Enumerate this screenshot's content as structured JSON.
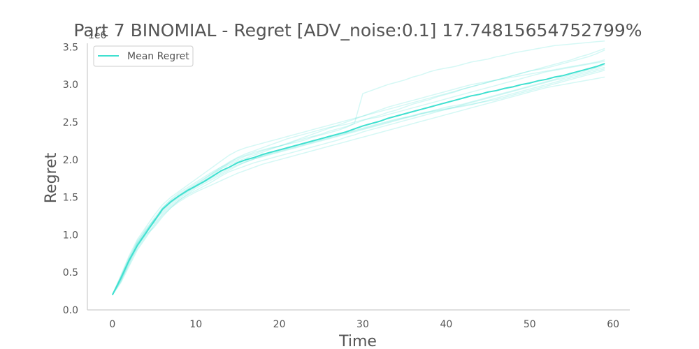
{
  "chart_data": {
    "type": "line",
    "title": "Part 7 BINOMIAL - Regret [ADV_noise:0.1] 17.74815654752799%",
    "xlabel": "Time",
    "ylabel": "Regret",
    "y_offset_label": "1e6",
    "xlim": [
      -3,
      62
    ],
    "ylim": [
      0,
      3.55
    ],
    "x_ticks": [
      0,
      10,
      20,
      30,
      40,
      50,
      60
    ],
    "x_tick_labels": [
      "0",
      "10",
      "20",
      "30",
      "40",
      "50",
      "60"
    ],
    "y_ticks": [
      0,
      0.5,
      1.0,
      1.5,
      2.0,
      2.5,
      3.0,
      3.5
    ],
    "y_tick_labels": [
      "0.0",
      "0.5",
      "1.0",
      "1.5",
      "2.0",
      "2.5",
      "3.0",
      "3.5"
    ],
    "grid": false,
    "legend": {
      "position": "upper-left",
      "entries": [
        "Mean Regret"
      ]
    },
    "color": "#40e0d0",
    "x": [
      0,
      1,
      2,
      3,
      4,
      5,
      6,
      7,
      8,
      9,
      10,
      11,
      12,
      13,
      14,
      15,
      16,
      17,
      18,
      19,
      20,
      21,
      22,
      23,
      24,
      25,
      26,
      27,
      28,
      29,
      30,
      31,
      32,
      33,
      34,
      35,
      36,
      37,
      38,
      39,
      40,
      41,
      42,
      43,
      44,
      45,
      46,
      47,
      48,
      49,
      50,
      51,
      52,
      53,
      54,
      55,
      56,
      57,
      58,
      59
    ],
    "series": [
      {
        "name": "Mean Regret",
        "values": [
          0.2,
          0.42,
          0.66,
          0.86,
          1.02,
          1.18,
          1.34,
          1.44,
          1.52,
          1.59,
          1.65,
          1.71,
          1.78,
          1.85,
          1.9,
          1.96,
          2.0,
          2.03,
          2.07,
          2.1,
          2.13,
          2.16,
          2.19,
          2.22,
          2.25,
          2.28,
          2.31,
          2.34,
          2.37,
          2.41,
          2.45,
          2.48,
          2.51,
          2.55,
          2.58,
          2.61,
          2.64,
          2.67,
          2.7,
          2.73,
          2.76,
          2.79,
          2.82,
          2.85,
          2.87,
          2.9,
          2.92,
          2.95,
          2.97,
          3.0,
          3.02,
          3.05,
          3.07,
          3.1,
          3.12,
          3.15,
          3.18,
          3.21,
          3.24,
          3.28
        ],
        "linewidth": 2
      }
    ],
    "runs": [
      [
        0.2,
        0.38,
        0.62,
        0.88,
        1.05,
        1.22,
        1.36,
        1.47,
        1.56,
        1.63,
        1.7,
        1.77,
        1.84,
        1.9,
        1.95,
        2.0,
        2.05,
        2.08,
        2.12,
        2.15,
        2.18,
        2.21,
        2.25,
        2.28,
        2.31,
        2.34,
        2.38,
        2.41,
        2.44,
        2.48,
        2.52,
        2.56,
        2.59,
        2.63,
        2.66,
        2.7,
        2.74,
        2.77,
        2.8,
        2.84,
        2.87,
        2.9,
        2.94,
        2.97,
        3.0,
        3.03,
        3.06,
        3.09,
        3.12,
        3.15,
        3.18,
        3.21,
        3.24,
        3.27,
        3.3,
        3.33,
        3.37,
        3.4,
        3.44,
        3.48
      ],
      [
        0.2,
        0.44,
        0.7,
        0.9,
        1.08,
        1.2,
        1.3,
        1.4,
        1.48,
        1.56,
        1.64,
        1.72,
        1.8,
        1.88,
        1.96,
        2.02,
        2.06,
        2.1,
        2.13,
        2.16,
        2.18,
        2.21,
        2.23,
        2.26,
        2.3,
        2.33,
        2.36,
        2.39,
        2.43,
        2.48,
        2.88,
        2.92,
        2.96,
        3.0,
        3.03,
        3.06,
        3.1,
        3.13,
        3.17,
        3.2,
        3.22,
        3.24,
        3.27,
        3.3,
        3.32,
        3.34,
        3.37,
        3.39,
        3.42,
        3.44,
        3.46,
        3.48,
        3.5,
        3.52,
        3.53,
        3.54,
        3.55,
        3.56,
        3.57,
        3.58
      ],
      [
        0.2,
        0.4,
        0.64,
        0.82,
        0.98,
        1.14,
        1.28,
        1.38,
        1.46,
        1.53,
        1.59,
        1.65,
        1.71,
        1.78,
        1.84,
        1.88,
        1.92,
        1.96,
        1.99,
        2.02,
        2.05,
        2.08,
        2.11,
        2.14,
        2.17,
        2.2,
        2.23,
        2.26,
        2.3,
        2.33,
        2.37,
        2.4,
        2.43,
        2.46,
        2.49,
        2.52,
        2.55,
        2.58,
        2.61,
        2.64,
        2.67,
        2.7,
        2.73,
        2.76,
        2.79,
        2.82,
        2.85,
        2.88,
        2.91,
        2.94,
        2.97,
        3.0,
        3.03,
        3.06,
        3.08,
        3.11,
        3.14,
        3.17,
        3.2,
        3.23
      ],
      [
        0.2,
        0.46,
        0.72,
        0.94,
        1.1,
        1.26,
        1.4,
        1.5,
        1.58,
        1.66,
        1.74,
        1.82,
        1.9,
        1.98,
        2.06,
        2.12,
        2.16,
        2.19,
        2.22,
        2.25,
        2.28,
        2.31,
        2.34,
        2.37,
        2.4,
        2.43,
        2.46,
        2.49,
        2.52,
        2.55,
        2.58,
        2.61,
        2.64,
        2.67,
        2.7,
        2.73,
        2.76,
        2.79,
        2.82,
        2.85,
        2.88,
        2.91,
        2.94,
        2.97,
        3.0,
        3.03,
        3.06,
        3.09,
        3.12,
        3.15,
        3.18,
        3.2,
        3.22,
        3.25,
        3.28,
        3.31,
        3.34,
        3.37,
        3.41,
        3.46
      ],
      [
        0.2,
        0.36,
        0.58,
        0.8,
        0.96,
        1.12,
        1.26,
        1.36,
        1.44,
        1.51,
        1.57,
        1.62,
        1.67,
        1.72,
        1.77,
        1.82,
        1.86,
        1.9,
        1.94,
        1.97,
        2.0,
        2.03,
        2.06,
        2.09,
        2.12,
        2.15,
        2.18,
        2.21,
        2.24,
        2.27,
        2.3,
        2.33,
        2.36,
        2.39,
        2.42,
        2.45,
        2.48,
        2.51,
        2.54,
        2.57,
        2.6,
        2.63,
        2.66,
        2.69,
        2.72,
        2.75,
        2.78,
        2.81,
        2.84,
        2.87,
        2.9,
        2.93,
        2.96,
        2.98,
        3.0,
        3.02,
        3.04,
        3.06,
        3.08,
        3.1
      ],
      [
        0.2,
        0.42,
        0.68,
        0.92,
        1.06,
        1.16,
        1.32,
        1.42,
        1.5,
        1.58,
        1.66,
        1.74,
        1.82,
        1.9,
        1.97,
        2.03,
        2.08,
        2.12,
        2.16,
        2.2,
        2.24,
        2.28,
        2.31,
        2.34,
        2.37,
        2.4,
        2.43,
        2.45,
        2.47,
        2.5,
        2.53,
        2.55,
        2.57,
        2.6,
        2.63,
        2.66,
        2.69,
        2.72,
        2.75,
        2.78,
        2.81,
        2.84,
        2.87,
        2.9,
        2.93,
        2.96,
        2.99,
        3.02,
        3.05,
        3.08,
        3.11,
        3.14,
        3.17,
        3.19,
        3.21,
        3.23,
        3.25,
        3.27,
        3.29,
        3.31
      ],
      [
        0.2,
        0.4,
        0.6,
        0.84,
        1.0,
        1.1,
        1.24,
        1.36,
        1.46,
        1.54,
        1.62,
        1.68,
        1.74,
        1.8,
        1.86,
        1.92,
        1.97,
        2.01,
        2.05,
        2.09,
        2.12,
        2.15,
        2.18,
        2.21,
        2.24,
        2.27,
        2.3,
        2.33,
        2.36,
        2.39,
        2.42,
        2.45,
        2.48,
        2.51,
        2.54,
        2.56,
        2.58,
        2.61,
        2.64,
        2.67,
        2.7,
        2.72,
        2.74,
        2.77,
        2.8,
        2.83,
        2.86,
        2.89,
        2.92,
        2.95,
        2.98,
        3.01,
        3.04,
        3.07,
        3.1,
        3.13,
        3.16,
        3.19,
        3.22,
        3.26
      ],
      [
        0.2,
        0.44,
        0.68,
        0.86,
        1.04,
        1.2,
        1.34,
        1.44,
        1.52,
        1.6,
        1.66,
        1.72,
        1.78,
        1.84,
        1.9,
        1.95,
        1.99,
        2.02,
        2.05,
        2.08,
        2.11,
        2.14,
        2.17,
        2.2,
        2.23,
        2.26,
        2.29,
        2.32,
        2.35,
        2.38,
        2.41,
        2.44,
        2.47,
        2.5,
        2.53,
        2.56,
        2.59,
        2.62,
        2.64,
        2.66,
        2.68,
        2.7,
        2.72,
        2.74,
        2.76,
        2.78,
        2.8,
        2.83,
        2.86,
        2.89,
        2.92,
        2.95,
        2.98,
        3.01,
        3.04,
        3.07,
        3.1,
        3.13,
        3.16,
        3.19
      ],
      [
        0.2,
        0.38,
        0.64,
        0.9,
        1.02,
        1.18,
        1.36,
        1.46,
        1.54,
        1.61,
        1.68,
        1.75,
        1.82,
        1.88,
        1.93,
        1.98,
        2.02,
        2.06,
        2.1,
        2.14,
        2.18,
        2.22,
        2.26,
        2.3,
        2.34,
        2.38,
        2.42,
        2.46,
        2.5,
        2.54,
        2.58,
        2.62,
        2.66,
        2.7,
        2.73,
        2.76,
        2.79,
        2.82,
        2.85,
        2.88,
        2.91,
        2.94,
        2.97,
        3.0,
        3.02,
        3.04,
        3.06,
        3.08,
        3.1,
        3.12,
        3.14,
        3.16,
        3.18,
        3.2,
        3.22,
        3.24,
        3.26,
        3.28,
        3.3,
        3.33
      ],
      [
        0.2,
        0.42,
        0.66,
        0.88,
        1.04,
        1.2,
        1.33,
        1.43,
        1.51,
        1.58,
        1.64,
        1.7,
        1.76,
        1.82,
        1.88,
        1.93,
        1.97,
        2.01,
        2.04,
        2.07,
        2.1,
        2.13,
        2.16,
        2.19,
        2.22,
        2.25,
        2.28,
        2.31,
        2.34,
        2.37,
        2.4,
        2.43,
        2.46,
        2.49,
        2.52,
        2.55,
        2.58,
        2.61,
        2.63,
        2.65,
        2.67,
        2.69,
        2.71,
        2.73,
        2.76,
        2.79,
        2.82,
        2.85,
        2.88,
        2.91,
        2.94,
        2.97,
        3.0,
        3.03,
        3.06,
        3.09,
        3.12,
        3.15,
        3.18,
        3.21
      ]
    ]
  }
}
